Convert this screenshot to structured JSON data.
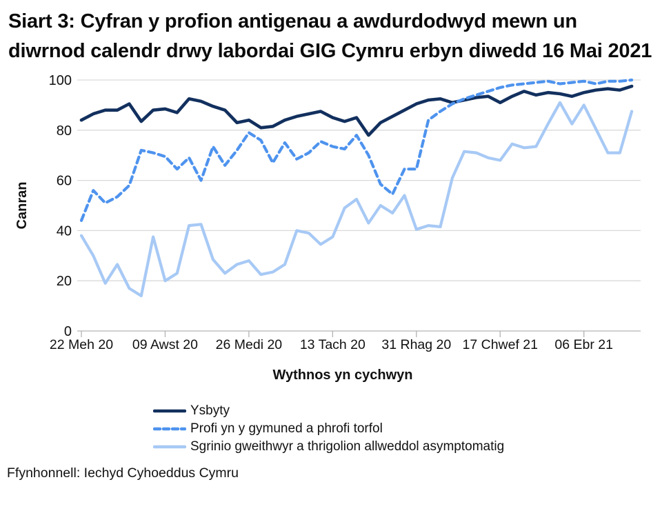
{
  "title": "Siart 3: Cyfran y profion antigenau a awdurdodwyd mewn un diwrnod calendr drwy labordai GIG Cymru erbyn diwedd 16 Mai 2021",
  "source": "Ffynhonnell: Iechyd Cyhoeddus Cymru",
  "chart_data": {
    "type": "line",
    "title": "Siart 3: Cyfran y profion antigenau a awdurdodwyd mewn un diwrnod calendr drwy labordai GIG Cymru erbyn diwedd 16 Mai 2021",
    "xlabel": "Wythnos yn cychwyn",
    "ylabel": "Canran",
    "ylim": [
      0,
      100
    ],
    "yticks": [
      0,
      20,
      40,
      60,
      80,
      100
    ],
    "x_tick_labels": [
      "22 Meh 20",
      "09 Awst 20",
      "26 Medi 20",
      "13 Tach 20",
      "31 Rhag 20",
      "17 Chwef 21",
      "06 Ebr 21"
    ],
    "x_tick_weeks": [
      0,
      7,
      14,
      21,
      28,
      35,
      42
    ],
    "n_points": 47,
    "grid": "horizontal",
    "legend_position": "bottom-left",
    "axis_color": "#b3b3b3",
    "grid_color": "#d9d9d9",
    "series": [
      {
        "name": "Ysbyty",
        "color": "#12305e",
        "style": "solid",
        "values": [
          84,
          86.5,
          88,
          88,
          90.5,
          83.5,
          88,
          88.5,
          87,
          92.5,
          91.5,
          89.5,
          88,
          83,
          84,
          81,
          81.5,
          84,
          85.5,
          86.5,
          87.5,
          85,
          83.5,
          85,
          78,
          83,
          85.5,
          88,
          90.5,
          92,
          92.5,
          91,
          92,
          93,
          93.5,
          91,
          93.5,
          95.5,
          94,
          95,
          94.5,
          93.5,
          95,
          96,
          96.5,
          96,
          97.5
        ]
      },
      {
        "name": "Profi yn y gymuned a phrofi torfol",
        "color": "#4e93ee",
        "style": "dashed",
        "values": [
          44,
          56,
          51,
          53.5,
          58,
          72,
          71,
          69.5,
          64.5,
          69,
          60,
          73.5,
          66,
          72,
          79,
          76,
          67,
          75,
          68.5,
          71,
          75.5,
          73.5,
          72.5,
          78,
          70,
          58.5,
          54.5,
          64.5,
          64.5,
          84,
          87.5,
          90.5,
          92.5,
          94,
          95.5,
          97,
          98,
          98.5,
          99,
          99.5,
          98.5,
          99,
          99.5,
          98.5,
          99.5,
          99.5,
          100
        ]
      },
      {
        "name": "Sgrinio gweithwyr a thrigolion allweddol asymptomatig",
        "color": "#a7c9f5",
        "style": "solid",
        "values": [
          38,
          30,
          19,
          26.5,
          17,
          14,
          37.5,
          20,
          23,
          42,
          42.5,
          28.5,
          23,
          26.5,
          28,
          22.5,
          23.5,
          26.5,
          40,
          39,
          34.5,
          37.5,
          49,
          52.5,
          43,
          50,
          47,
          54,
          40.5,
          42,
          41.5,
          61,
          71.5,
          71,
          69,
          68,
          74.5,
          73,
          73.5,
          82.5,
          91,
          82.5,
          90,
          80.5,
          71,
          71,
          87.5
        ]
      }
    ]
  }
}
